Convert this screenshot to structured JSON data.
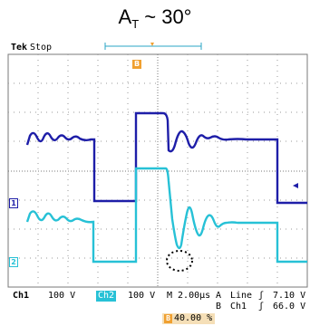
{
  "title": {
    "main": "A",
    "subscript": "T",
    "suffix": " ~ 30°"
  },
  "header": {
    "brand": "Tek",
    "status": "Stop"
  },
  "markers": {
    "trigger_position": "B",
    "ch1": "1",
    "ch2": "2",
    "level_pointer": "◂"
  },
  "bottom": {
    "ch1_label": "Ch1",
    "ch1_scale": "100 V",
    "ch2_label": "Ch2",
    "ch2_scale": "100 V",
    "timebase": "M 2.00µs",
    "trig_a_label": "A",
    "trig_a_source": "Line",
    "trig_a_level": "7.10 V",
    "trig_b_label": "B",
    "trig_b_source": "Ch1",
    "trig_b_level": "66.0 V",
    "horizontal_position": "40.00 %"
  },
  "colors": {
    "ch1": "#1e1ea8",
    "ch2": "#27c1d6",
    "grid": "#7a7a7a",
    "trigger": "#f0a030",
    "top_bracket": "#2aa5c4"
  }
}
